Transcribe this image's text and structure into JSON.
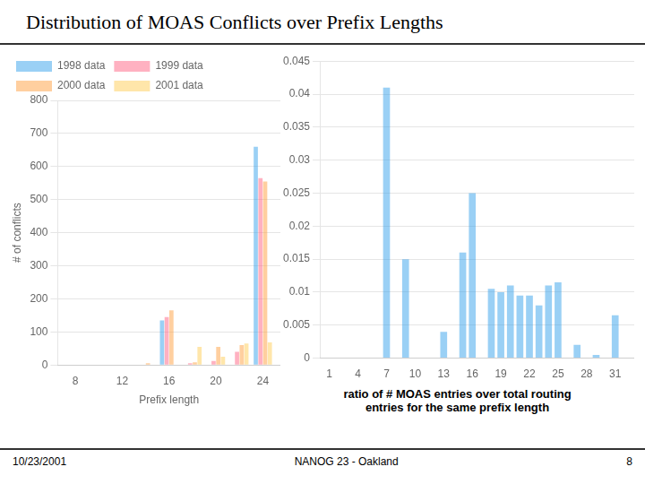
{
  "title": "Distribution of MOAS Conflicts over Prefix Lengths",
  "annotations": [
    "10/23/2001",
    "NANOG 23 - Oakland",
    "8"
  ],
  "chart_data": [
    {
      "type": "bar",
      "x": [
        8,
        10,
        12,
        14,
        16,
        18,
        20,
        22,
        24
      ],
      "series": [
        {
          "name": "1998 data",
          "values": [
            0,
            0,
            0,
            0,
            135,
            0,
            0,
            0,
            660
          ]
        },
        {
          "name": "1999 data",
          "values": [
            0,
            0,
            0,
            0,
            145,
            5,
            12,
            40,
            565
          ]
        },
        {
          "name": "2000 data",
          "values": [
            0,
            0,
            0,
            5,
            165,
            8,
            55,
            60,
            555
          ]
        },
        {
          "name": "2001 data",
          "values": [
            0,
            0,
            0,
            0,
            0,
            55,
            25,
            65,
            68
          ]
        }
      ],
      "xlabel": "Prefix length",
      "ylabel": "# of conflicts",
      "xlim": [
        6.5,
        25.5
      ],
      "xticks": [
        8,
        12,
        16,
        20,
        24
      ],
      "ylim": [
        0,
        800
      ],
      "yticks": [
        0,
        100,
        200,
        300,
        400,
        500,
        600,
        700,
        800
      ],
      "grid": "y",
      "legend": "upper left"
    },
    {
      "type": "bar",
      "x": [
        1,
        2,
        3,
        4,
        5,
        6,
        7,
        8,
        9,
        10,
        11,
        12,
        13,
        14,
        15,
        16,
        17,
        18,
        19,
        20,
        21,
        22,
        23,
        24,
        25,
        26,
        27,
        28,
        29,
        30,
        31,
        32
      ],
      "values": [
        0,
        0,
        0,
        0,
        0,
        0,
        0.041,
        0,
        0.015,
        0,
        0,
        0,
        0.004,
        0,
        0.016,
        0.025,
        0,
        0.0105,
        0.01,
        0.011,
        0.0095,
        0.0095,
        0.008,
        0.011,
        0.0115,
        0,
        0.002,
        0,
        0.0005,
        0,
        0.0065,
        0
      ],
      "xlim": [
        0,
        33
      ],
      "xticks": [
        1,
        4,
        7,
        10,
        13,
        16,
        19,
        22,
        25,
        28,
        31
      ],
      "ylim": [
        0,
        0.045
      ],
      "yticks": [
        0,
        0.005,
        0.01,
        0.015,
        0.02,
        0.025,
        0.03,
        0.035,
        0.04,
        0.045
      ],
      "grid": "y",
      "annotation": "ratio of # MOAS entries over total routing\nentries for the same prefix length"
    }
  ]
}
